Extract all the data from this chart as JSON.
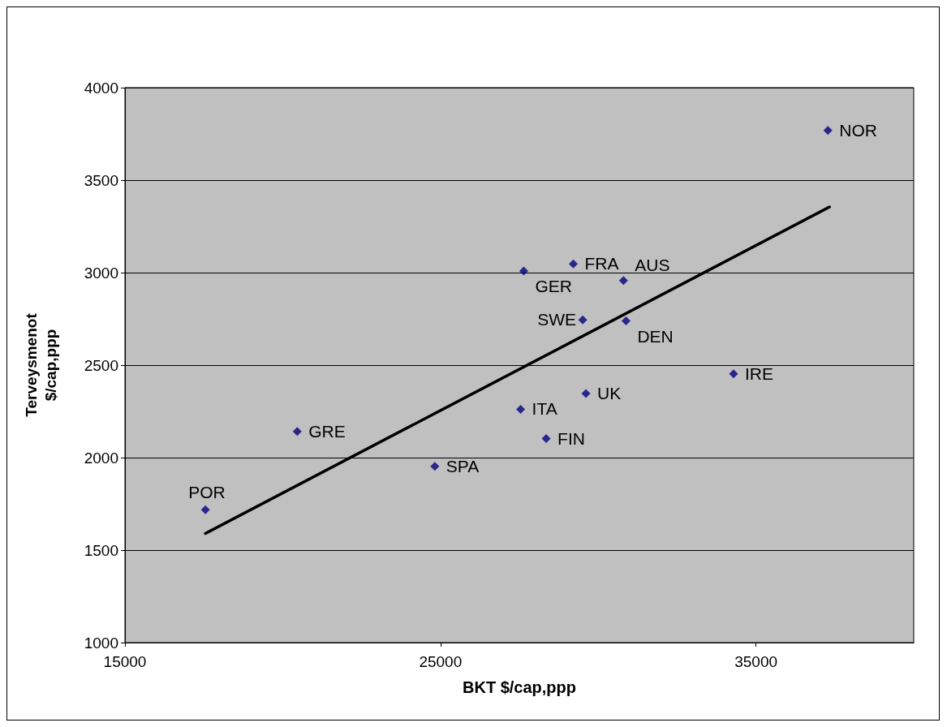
{
  "chart_data": {
    "type": "scatter",
    "xlabel": "BKT $/cap,ppp",
    "ylabel": "Terveysmenot\n$/cap,ppp",
    "x": [
      17550,
      20460,
      24820,
      27540,
      27640,
      28350,
      29210,
      29510,
      29610,
      30800,
      30880,
      34290,
      37280
    ],
    "series": [
      {
        "color": "#000080",
        "marker": "diamond",
        "values": [
          1718,
          2141,
          1953,
          2261,
          3009,
          2103,
          3047,
          2744,
          2346,
          2957,
          2739,
          2453,
          3769
        ]
      },
      {
        "type": "line",
        "color": "#000000",
        "marker": "none",
        "x": [
          17550,
          37330
        ],
        "values": [
          1590,
          3355
        ]
      }
    ],
    "annotations": [
      {
        "text": "POR",
        "x": 17550,
        "y": 1718
      },
      {
        "text": "GRE",
        "x": 20460,
        "y": 2141
      },
      {
        "text": "SPA",
        "x": 24820,
        "y": 1953
      },
      {
        "text": "ITA",
        "x": 27540,
        "y": 2261
      },
      {
        "text": "GER",
        "x": 27640,
        "y": 3009
      },
      {
        "text": "FIN",
        "x": 28350,
        "y": 2103
      },
      {
        "text": "FRA",
        "x": 29210,
        "y": 3047
      },
      {
        "text": "SWE",
        "x": 29510,
        "y": 2744
      },
      {
        "text": "UK",
        "x": 29610,
        "y": 2346
      },
      {
        "text": "AUS",
        "x": 30800,
        "y": 2957
      },
      {
        "text": "DEN",
        "x": 30880,
        "y": 2739
      },
      {
        "text": "IRE",
        "x": 34290,
        "y": 2453
      },
      {
        "text": "NOR",
        "x": 37280,
        "y": 3769
      }
    ],
    "xlim": [
      15000,
      40000
    ],
    "xticks": [
      15000,
      25000,
      35000
    ],
    "ylim": [
      1000,
      4000
    ],
    "yticks": [
      1000,
      1500,
      2000,
      2500,
      3000,
      3500,
      4000
    ],
    "grid": "y"
  }
}
